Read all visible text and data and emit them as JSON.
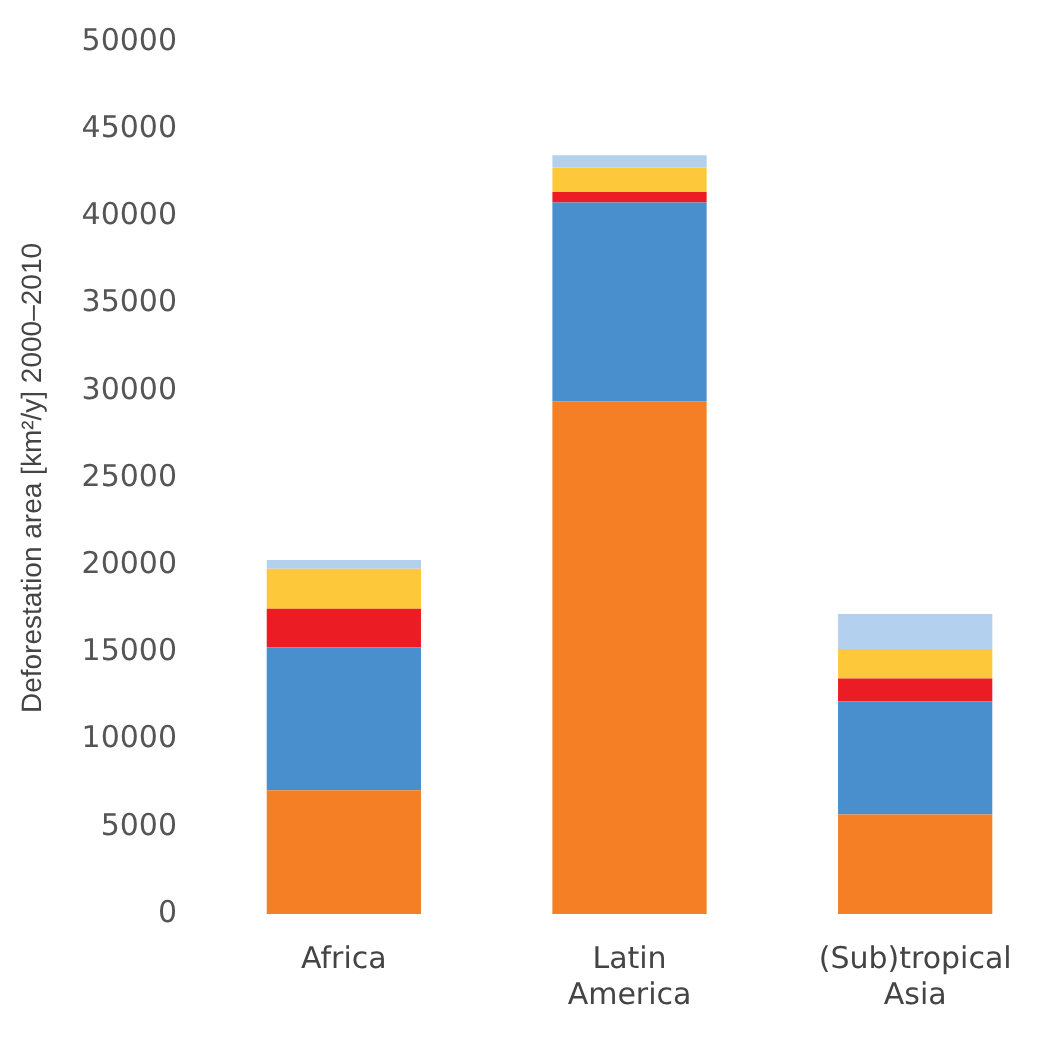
{
  "chart_data": {
    "type": "bar",
    "stacked": true,
    "ylabel": "Deforestation area [km²/y] 2000–2010",
    "categories": [
      "Africa",
      "Latin America",
      "(Sub)tropical Asia"
    ],
    "series": [
      {
        "color": "#f47f24",
        "values": [
          7100,
          29400,
          5700
        ]
      },
      {
        "color": "#4a8fcd",
        "values": [
          8200,
          11400,
          6500
        ]
      },
      {
        "color": "#ec1c24",
        "values": [
          2200,
          600,
          1300
        ]
      },
      {
        "color": "#fdc93a",
        "values": [
          2300,
          1400,
          1700
        ]
      },
      {
        "color": "#b3d1ee",
        "values": [
          500,
          700,
          2000
        ]
      }
    ],
    "ylim": [
      0,
      50000
    ],
    "yticks": [
      0,
      5000,
      10000,
      15000,
      20000,
      25000,
      30000,
      35000,
      40000,
      45000,
      50000
    ],
    "grid": false,
    "legend": false
  }
}
